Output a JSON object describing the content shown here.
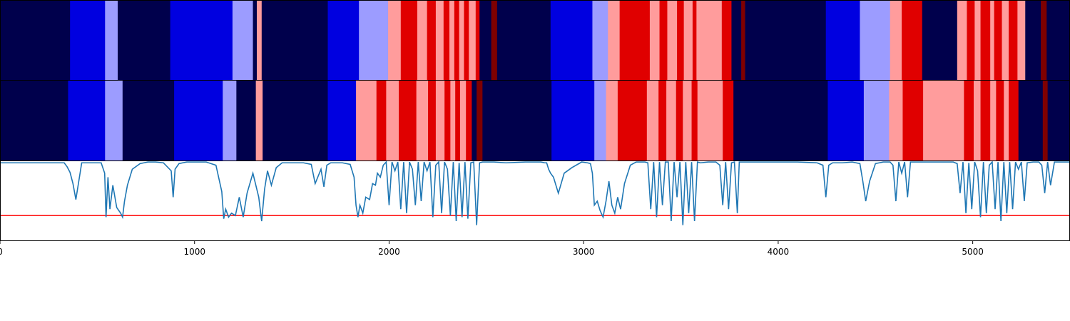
{
  "chart_data": {
    "type": "heatmap",
    "description_free": true,
    "x_range": [
      0,
      5500
    ],
    "x_ticks": [
      0,
      1000,
      2000,
      3000,
      4000,
      5000
    ],
    "x_tick_labels": [
      "0",
      "1000",
      "2000",
      "3000",
      "4000",
      "5000"
    ],
    "state_colors": {
      "0": "#00004c",
      "1": "#0000e0",
      "2": "#9c9cff",
      "3": "#ff9c9c",
      "4": "#e00000",
      "5": "#7f0000"
    },
    "rows": [
      {
        "name": "state-row-1",
        "segments": [
          [
            0,
            360,
            0
          ],
          [
            360,
            540,
            1
          ],
          [
            540,
            605,
            2
          ],
          [
            605,
            875,
            0
          ],
          [
            875,
            1195,
            1
          ],
          [
            1195,
            1300,
            2
          ],
          [
            1300,
            1320,
            0
          ],
          [
            1320,
            1345,
            3
          ],
          [
            1345,
            1685,
            0
          ],
          [
            1685,
            1845,
            1
          ],
          [
            1845,
            1995,
            2
          ],
          [
            1995,
            2060,
            3
          ],
          [
            2060,
            2145,
            4
          ],
          [
            2145,
            2195,
            3
          ],
          [
            2195,
            2240,
            4
          ],
          [
            2240,
            2280,
            3
          ],
          [
            2280,
            2310,
            4
          ],
          [
            2310,
            2335,
            3
          ],
          [
            2335,
            2360,
            4
          ],
          [
            2360,
            2385,
            3
          ],
          [
            2385,
            2410,
            4
          ],
          [
            2410,
            2445,
            3
          ],
          [
            2445,
            2465,
            4
          ],
          [
            2465,
            2525,
            0
          ],
          [
            2525,
            2555,
            5
          ],
          [
            2555,
            2830,
            0
          ],
          [
            2830,
            3045,
            1
          ],
          [
            3045,
            3125,
            2
          ],
          [
            3125,
            3185,
            3
          ],
          [
            3185,
            3340,
            4
          ],
          [
            3340,
            3390,
            3
          ],
          [
            3390,
            3430,
            4
          ],
          [
            3430,
            3480,
            3
          ],
          [
            3480,
            3515,
            4
          ],
          [
            3515,
            3560,
            3
          ],
          [
            3560,
            3580,
            4
          ],
          [
            3580,
            3710,
            3
          ],
          [
            3710,
            3760,
            4
          ],
          [
            3760,
            3810,
            0
          ],
          [
            3810,
            3830,
            5
          ],
          [
            3830,
            4245,
            0
          ],
          [
            4245,
            4420,
            1
          ],
          [
            4420,
            4575,
            2
          ],
          [
            4575,
            4635,
            3
          ],
          [
            4635,
            4740,
            4
          ],
          [
            4740,
            4920,
            0
          ],
          [
            4920,
            4970,
            3
          ],
          [
            4970,
            5010,
            4
          ],
          [
            5010,
            5040,
            3
          ],
          [
            5040,
            5090,
            4
          ],
          [
            5090,
            5110,
            3
          ],
          [
            5110,
            5150,
            4
          ],
          [
            5150,
            5185,
            3
          ],
          [
            5185,
            5230,
            4
          ],
          [
            5230,
            5270,
            3
          ],
          [
            5270,
            5350,
            0
          ],
          [
            5350,
            5380,
            5
          ],
          [
            5380,
            5500,
            0
          ]
        ]
      },
      {
        "name": "state-row-2",
        "segments": [
          [
            0,
            350,
            0
          ],
          [
            350,
            540,
            1
          ],
          [
            540,
            630,
            2
          ],
          [
            630,
            895,
            0
          ],
          [
            895,
            1145,
            1
          ],
          [
            1145,
            1215,
            2
          ],
          [
            1215,
            1315,
            0
          ],
          [
            1315,
            1350,
            3
          ],
          [
            1350,
            1685,
            0
          ],
          [
            1685,
            1830,
            1
          ],
          [
            1830,
            1935,
            3
          ],
          [
            1935,
            1985,
            4
          ],
          [
            1985,
            2050,
            3
          ],
          [
            2050,
            2140,
            4
          ],
          [
            2140,
            2200,
            3
          ],
          [
            2200,
            2240,
            4
          ],
          [
            2240,
            2285,
            3
          ],
          [
            2285,
            2315,
            4
          ],
          [
            2315,
            2340,
            3
          ],
          [
            2340,
            2365,
            4
          ],
          [
            2365,
            2395,
            3
          ],
          [
            2395,
            2425,
            4
          ],
          [
            2425,
            2450,
            0
          ],
          [
            2450,
            2480,
            5
          ],
          [
            2480,
            2835,
            0
          ],
          [
            2835,
            3055,
            1
          ],
          [
            3055,
            3115,
            2
          ],
          [
            3115,
            3175,
            3
          ],
          [
            3175,
            3325,
            4
          ],
          [
            3325,
            3385,
            3
          ],
          [
            3385,
            3425,
            4
          ],
          [
            3425,
            3475,
            3
          ],
          [
            3475,
            3510,
            4
          ],
          [
            3510,
            3555,
            3
          ],
          [
            3555,
            3585,
            4
          ],
          [
            3585,
            3715,
            3
          ],
          [
            3715,
            3770,
            4
          ],
          [
            3770,
            4255,
            0
          ],
          [
            4255,
            4440,
            1
          ],
          [
            4440,
            4570,
            2
          ],
          [
            4570,
            4640,
            3
          ],
          [
            4640,
            4745,
            4
          ],
          [
            4745,
            4955,
            3
          ],
          [
            4955,
            5005,
            4
          ],
          [
            5005,
            5040,
            3
          ],
          [
            5040,
            5090,
            4
          ],
          [
            5090,
            5120,
            3
          ],
          [
            5120,
            5160,
            4
          ],
          [
            5160,
            5185,
            3
          ],
          [
            5185,
            5235,
            4
          ],
          [
            5235,
            5270,
            0
          ],
          [
            5270,
            5360,
            0
          ],
          [
            5360,
            5385,
            5
          ],
          [
            5385,
            5500,
            0
          ]
        ]
      }
    ],
    "line": {
      "name": "probability-trace",
      "color": "#1f77b4",
      "y_range": [
        0,
        1
      ],
      "x": [
        0,
        0,
        330,
        345,
        360,
        375,
        390,
        420,
        470,
        520,
        538,
        545,
        555,
        565,
        580,
        600,
        620,
        630,
        640,
        655,
        680,
        720,
        760,
        800,
        840,
        880,
        890,
        900,
        920,
        960,
        1060,
        1110,
        1140,
        1150,
        1160,
        1175,
        1190,
        1210,
        1230,
        1250,
        1270,
        1300,
        1330,
        1345,
        1360,
        1375,
        1395,
        1420,
        1450,
        1500,
        1560,
        1600,
        1620,
        1650,
        1665,
        1680,
        1700,
        1760,
        1800,
        1820,
        1830,
        1840,
        1850,
        1865,
        1880,
        1900,
        1915,
        1930,
        1940,
        1955,
        1970,
        1985,
        2000,
        2015,
        2030,
        2045,
        2060,
        2075,
        2090,
        2105,
        2120,
        2135,
        2150,
        2165,
        2180,
        2195,
        2210,
        2225,
        2240,
        2255,
        2270,
        2285,
        2300,
        2315,
        2330,
        2345,
        2360,
        2375,
        2390,
        2405,
        2420,
        2435,
        2450,
        2465,
        2480,
        2500,
        2540,
        2600,
        2700,
        2780,
        2800,
        2810,
        2820,
        2830,
        2845,
        2870,
        2900,
        2940,
        2990,
        3020,
        3035,
        3045,
        3055,
        3070,
        3085,
        3100,
        3115,
        3130,
        3145,
        3160,
        3175,
        3190,
        3210,
        3240,
        3270,
        3300,
        3315,
        3330,
        3345,
        3360,
        3375,
        3390,
        3405,
        3420,
        3435,
        3450,
        3465,
        3480,
        3495,
        3510,
        3525,
        3540,
        3555,
        3570,
        3585,
        3600,
        3640,
        3680,
        3700,
        3715,
        3730,
        3745,
        3760,
        3775,
        3790,
        3800,
        3820,
        3900,
        4000,
        4100,
        4200,
        4230,
        4245,
        4260,
        4280,
        4330,
        4380,
        4420,
        4435,
        4450,
        4470,
        4500,
        4540,
        4575,
        4590,
        4605,
        4620,
        4635,
        4650,
        4665,
        4680,
        4700,
        4730,
        4760,
        4800,
        4850,
        4900,
        4920,
        4935,
        4950,
        4965,
        4980,
        4995,
        5010,
        5025,
        5040,
        5055,
        5070,
        5085,
        5100,
        5115,
        5130,
        5145,
        5160,
        5175,
        5190,
        5205,
        5220,
        5235,
        5250,
        5265,
        5280,
        5310,
        5340,
        5355,
        5370,
        5385,
        5400,
        5420,
        5450,
        5500
      ],
      "y": [
        0.98,
        0.98,
        0.98,
        0.93,
        0.86,
        0.72,
        0.52,
        0.98,
        0.98,
        0.98,
        0.85,
        0.3,
        0.8,
        0.4,
        0.7,
        0.42,
        0.35,
        0.3,
        0.5,
        0.7,
        0.9,
        0.97,
        0.99,
        0.99,
        0.98,
        0.88,
        0.55,
        0.9,
        0.97,
        0.99,
        0.99,
        0.95,
        0.62,
        0.28,
        0.4,
        0.3,
        0.35,
        0.32,
        0.55,
        0.3,
        0.6,
        0.85,
        0.55,
        0.25,
        0.65,
        0.88,
        0.7,
        0.92,
        0.98,
        0.98,
        0.98,
        0.96,
        0.72,
        0.9,
        0.68,
        0.95,
        0.98,
        0.98,
        0.96,
        0.8,
        0.45,
        0.3,
        0.45,
        0.35,
        0.55,
        0.52,
        0.72,
        0.7,
        0.85,
        0.8,
        0.95,
        0.99,
        0.45,
        0.99,
        0.88,
        0.99,
        0.4,
        0.99,
        0.35,
        0.99,
        0.9,
        0.45,
        0.99,
        0.5,
        0.99,
        0.88,
        0.99,
        0.3,
        0.95,
        0.99,
        0.35,
        0.99,
        0.9,
        0.32,
        0.99,
        0.25,
        0.98,
        0.3,
        0.99,
        0.28,
        0.98,
        0.99,
        0.2,
        0.98,
        0.99,
        0.99,
        0.99,
        0.98,
        0.99,
        0.99,
        0.98,
        0.98,
        0.9,
        0.85,
        0.8,
        0.6,
        0.85,
        0.92,
        0.99,
        0.98,
        0.97,
        0.85,
        0.45,
        0.5,
        0.38,
        0.3,
        0.5,
        0.75,
        0.45,
        0.35,
        0.55,
        0.4,
        0.72,
        0.95,
        0.99,
        0.99,
        0.99,
        0.98,
        0.4,
        0.99,
        0.3,
        0.99,
        0.45,
        0.99,
        0.99,
        0.25,
        0.99,
        0.55,
        0.99,
        0.2,
        0.99,
        0.35,
        0.99,
        0.25,
        0.99,
        0.98,
        0.99,
        0.99,
        0.95,
        0.45,
        0.99,
        0.4,
        0.98,
        0.99,
        0.35,
        0.99,
        0.99,
        0.99,
        0.99,
        0.99,
        0.98,
        0.95,
        0.55,
        0.95,
        0.98,
        0.98,
        0.99,
        0.97,
        0.75,
        0.5,
        0.75,
        0.97,
        0.99,
        0.99,
        0.95,
        0.5,
        0.99,
        0.85,
        0.99,
        0.55,
        0.99,
        0.99,
        0.99,
        0.99,
        0.99,
        0.99,
        0.99,
        0.97,
        0.6,
        0.99,
        0.35,
        0.98,
        0.4,
        0.99,
        0.88,
        0.3,
        0.99,
        0.35,
        0.95,
        0.99,
        0.4,
        0.99,
        0.25,
        0.99,
        0.35,
        0.99,
        0.4,
        0.99,
        0.9,
        0.99,
        0.5,
        0.98,
        0.99,
        0.99,
        0.95,
        0.6,
        0.99,
        0.7,
        0.99,
        0.99,
        0.99
      ]
    },
    "threshold": {
      "value": 0.32,
      "color": "#ff0000"
    }
  }
}
